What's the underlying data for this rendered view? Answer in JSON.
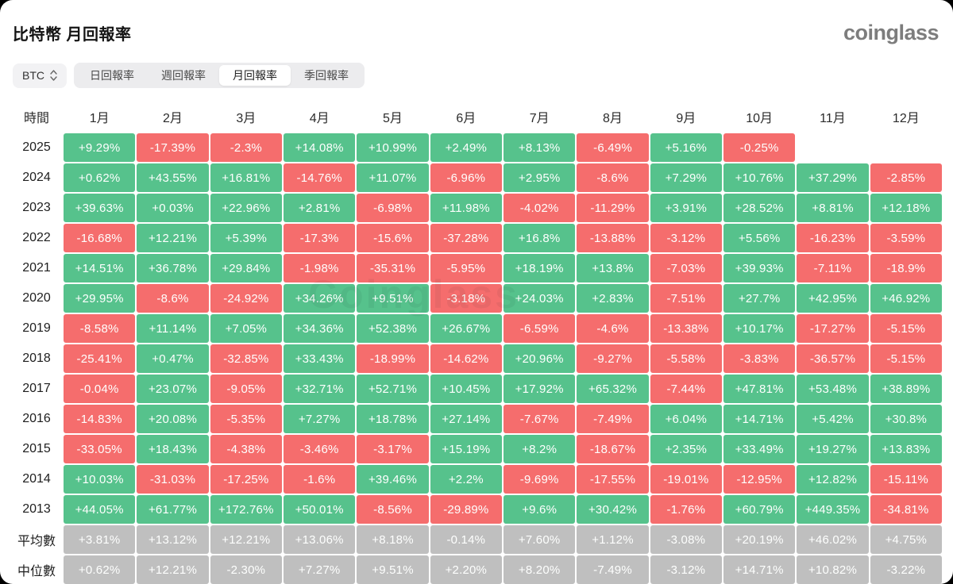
{
  "page": {
    "title": "比特幣 月回報率",
    "logo": "coinglass",
    "watermark": "Coinglass"
  },
  "controls": {
    "coin_selector": {
      "value": "BTC"
    },
    "tabs": [
      {
        "label": "日回報率",
        "active": false
      },
      {
        "label": "週回報率",
        "active": false
      },
      {
        "label": "月回報率",
        "active": true
      },
      {
        "label": "季回報率",
        "active": false
      }
    ]
  },
  "colors": {
    "positive": "#56C28C",
    "negative": "#F56D6D",
    "summary": "#BFBFBF",
    "tab_bg": "#ECECEE",
    "active_tab_bg": "#FFFFFF"
  },
  "chart_data": {
    "type": "heatmap",
    "columns": [
      "時間",
      "1月",
      "2月",
      "3月",
      "4月",
      "5月",
      "6月",
      "7月",
      "8月",
      "9月",
      "10月",
      "11月",
      "12月"
    ],
    "rows": [
      {
        "label": "2025",
        "kind": "year",
        "values": [
          "+9.29%",
          "-17.39%",
          "-2.3%",
          "+14.08%",
          "+10.99%",
          "+2.49%",
          "+8.13%",
          "-6.49%",
          "+5.16%",
          "-0.25%",
          null,
          null
        ]
      },
      {
        "label": "2024",
        "kind": "year",
        "values": [
          "+0.62%",
          "+43.55%",
          "+16.81%",
          "-14.76%",
          "+11.07%",
          "-6.96%",
          "+2.95%",
          "-8.6%",
          "+7.29%",
          "+10.76%",
          "+37.29%",
          "-2.85%"
        ]
      },
      {
        "label": "2023",
        "kind": "year",
        "values": [
          "+39.63%",
          "+0.03%",
          "+22.96%",
          "+2.81%",
          "-6.98%",
          "+11.98%",
          "-4.02%",
          "-11.29%",
          "+3.91%",
          "+28.52%",
          "+8.81%",
          "+12.18%"
        ]
      },
      {
        "label": "2022",
        "kind": "year",
        "values": [
          "-16.68%",
          "+12.21%",
          "+5.39%",
          "-17.3%",
          "-15.6%",
          "-37.28%",
          "+16.8%",
          "-13.88%",
          "-3.12%",
          "+5.56%",
          "-16.23%",
          "-3.59%"
        ]
      },
      {
        "label": "2021",
        "kind": "year",
        "values": [
          "+14.51%",
          "+36.78%",
          "+29.84%",
          "-1.98%",
          "-35.31%",
          "-5.95%",
          "+18.19%",
          "+13.8%",
          "-7.03%",
          "+39.93%",
          "-7.11%",
          "-18.9%"
        ]
      },
      {
        "label": "2020",
        "kind": "year",
        "values": [
          "+29.95%",
          "-8.6%",
          "-24.92%",
          "+34.26%",
          "+9.51%",
          "-3.18%",
          "+24.03%",
          "+2.83%",
          "-7.51%",
          "+27.7%",
          "+42.95%",
          "+46.92%"
        ]
      },
      {
        "label": "2019",
        "kind": "year",
        "values": [
          "-8.58%",
          "+11.14%",
          "+7.05%",
          "+34.36%",
          "+52.38%",
          "+26.67%",
          "-6.59%",
          "-4.6%",
          "-13.38%",
          "+10.17%",
          "-17.27%",
          "-5.15%"
        ]
      },
      {
        "label": "2018",
        "kind": "year",
        "values": [
          "-25.41%",
          "+0.47%",
          "-32.85%",
          "+33.43%",
          "-18.99%",
          "-14.62%",
          "+20.96%",
          "-9.27%",
          "-5.58%",
          "-3.83%",
          "-36.57%",
          "-5.15%"
        ]
      },
      {
        "label": "2017",
        "kind": "year",
        "values": [
          "-0.04%",
          "+23.07%",
          "-9.05%",
          "+32.71%",
          "+52.71%",
          "+10.45%",
          "+17.92%",
          "+65.32%",
          "-7.44%",
          "+47.81%",
          "+53.48%",
          "+38.89%"
        ]
      },
      {
        "label": "2016",
        "kind": "year",
        "values": [
          "-14.83%",
          "+20.08%",
          "-5.35%",
          "+7.27%",
          "+18.78%",
          "+27.14%",
          "-7.67%",
          "-7.49%",
          "+6.04%",
          "+14.71%",
          "+5.42%",
          "+30.8%"
        ]
      },
      {
        "label": "2015",
        "kind": "year",
        "values": [
          "-33.05%",
          "+18.43%",
          "-4.38%",
          "-3.46%",
          "-3.17%",
          "+15.19%",
          "+8.2%",
          "-18.67%",
          "+2.35%",
          "+33.49%",
          "+19.27%",
          "+13.83%"
        ]
      },
      {
        "label": "2014",
        "kind": "year",
        "values": [
          "+10.03%",
          "-31.03%",
          "-17.25%",
          "-1.6%",
          "+39.46%",
          "+2.2%",
          "-9.69%",
          "-17.55%",
          "-19.01%",
          "-12.95%",
          "+12.82%",
          "-15.11%"
        ]
      },
      {
        "label": "2013",
        "kind": "year",
        "values": [
          "+44.05%",
          "+61.77%",
          "+172.76%",
          "+50.01%",
          "-8.56%",
          "-29.89%",
          "+9.6%",
          "+30.42%",
          "-1.76%",
          "+60.79%",
          "+449.35%",
          "-34.81%"
        ]
      },
      {
        "label": "平均數",
        "kind": "summary",
        "values": [
          "+3.81%",
          "+13.12%",
          "+12.21%",
          "+13.06%",
          "+8.18%",
          "-0.14%",
          "+7.60%",
          "+1.12%",
          "-3.08%",
          "+20.19%",
          "+46.02%",
          "+4.75%"
        ]
      },
      {
        "label": "中位數",
        "kind": "summary",
        "values": [
          "+0.62%",
          "+12.21%",
          "-2.30%",
          "+7.27%",
          "+9.51%",
          "+2.20%",
          "+8.20%",
          "-7.49%",
          "-3.12%",
          "+14.71%",
          "+10.82%",
          "-3.22%"
        ]
      }
    ]
  }
}
